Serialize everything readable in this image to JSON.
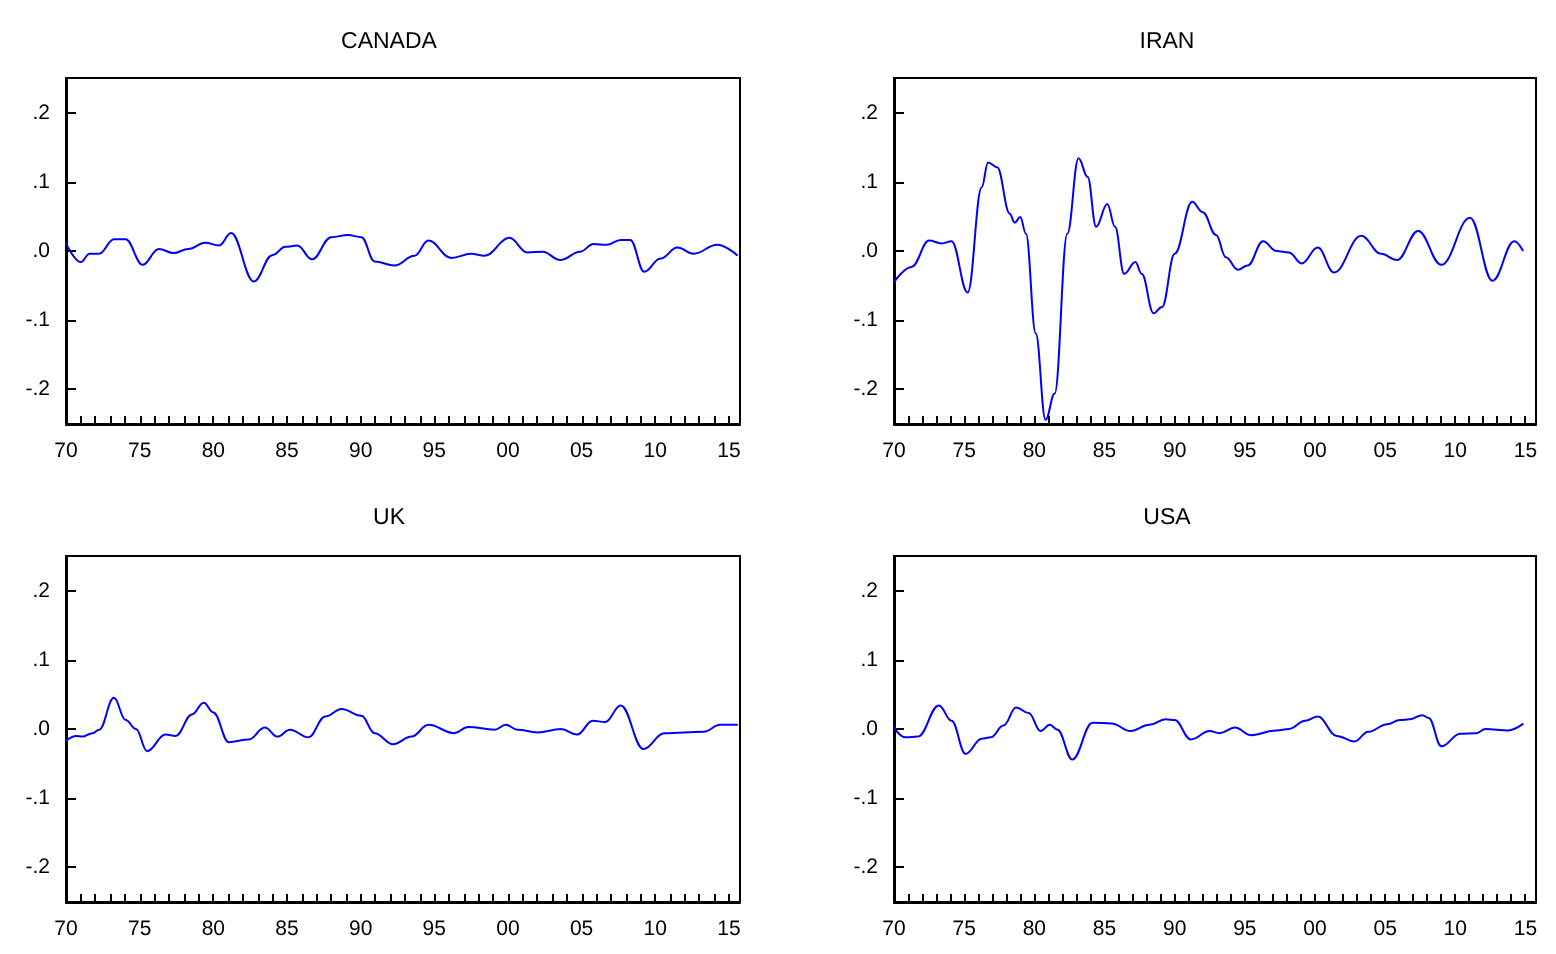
{
  "chart_data": [
    {
      "type": "line",
      "title": "CANADA",
      "x": [
        1970,
        1971.0,
        1971.6,
        1972.25,
        1973.25,
        1974.05,
        1975.2,
        1976.3,
        1977.3,
        1978.3,
        1979.45,
        1980.4,
        1981.2,
        1982.75,
        1984,
        1984.9,
        1985.7,
        1986.7,
        1988,
        1989.15,
        1990.05,
        1990.95,
        1992.3,
        1993.65,
        1994.6,
        1996.15,
        1997.5,
        1998.4,
        2000.1,
        2001.3,
        2002.35,
        2003.55,
        2004.9,
        2005.8,
        2006.7,
        2007.65,
        2008.3,
        2009.25,
        2010.35,
        2011.5,
        2012.6,
        2014.2,
        2015.55
      ],
      "series": [
        {
          "color": "#0000ff",
          "values": [
            0.011,
            -0.016,
            -0.004,
            -0.004,
            0.017,
            0.017,
            -0.02,
            0.003,
            -0.003,
            0.003,
            0.012,
            0.008,
            0.026,
            -0.044,
            -0.006,
            0.006,
            0.008,
            -0.012,
            0.02,
            0.023,
            0.02,
            -0.015,
            -0.021,
            -0.007,
            0.015,
            -0.01,
            -0.004,
            -0.007,
            0.019,
            -0.002,
            -0.001,
            -0.013,
            -0.001,
            0.01,
            0.009,
            0.016,
            0.016,
            -0.03,
            -0.011,
            0.005,
            -0.004,
            0.009,
            -0.006
          ]
        }
      ],
      "xlim": [
        1970,
        2015.75
      ],
      "xticks": [
        {
          "value": 1970,
          "label": "70"
        },
        {
          "value": 1971,
          "label": null
        },
        {
          "value": 1972,
          "label": null
        },
        {
          "value": 1973,
          "label": null
        },
        {
          "value": 1974,
          "label": null
        },
        {
          "value": 1975,
          "label": "75"
        },
        {
          "value": 1976,
          "label": null
        },
        {
          "value": 1977,
          "label": null
        },
        {
          "value": 1978,
          "label": null
        },
        {
          "value": 1979,
          "label": null
        },
        {
          "value": 1980,
          "label": "80"
        },
        {
          "value": 1981,
          "label": null
        },
        {
          "value": 1982,
          "label": null
        },
        {
          "value": 1983,
          "label": null
        },
        {
          "value": 1984,
          "label": null
        },
        {
          "value": 1985,
          "label": "85"
        },
        {
          "value": 1986,
          "label": null
        },
        {
          "value": 1987,
          "label": null
        },
        {
          "value": 1988,
          "label": null
        },
        {
          "value": 1989,
          "label": null
        },
        {
          "value": 1990,
          "label": "90"
        },
        {
          "value": 1991,
          "label": null
        },
        {
          "value": 1992,
          "label": null
        },
        {
          "value": 1993,
          "label": null
        },
        {
          "value": 1994,
          "label": null
        },
        {
          "value": 1995,
          "label": "95"
        },
        {
          "value": 1996,
          "label": null
        },
        {
          "value": 1997,
          "label": null
        },
        {
          "value": 1998,
          "label": null
        },
        {
          "value": 1999,
          "label": null
        },
        {
          "value": 2000,
          "label": "00"
        },
        {
          "value": 2001,
          "label": null
        },
        {
          "value": 2002,
          "label": null
        },
        {
          "value": 2003,
          "label": null
        },
        {
          "value": 2004,
          "label": null
        },
        {
          "value": 2005,
          "label": "05"
        },
        {
          "value": 2006,
          "label": null
        },
        {
          "value": 2007,
          "label": null
        },
        {
          "value": 2008,
          "label": null
        },
        {
          "value": 2009,
          "label": null
        },
        {
          "value": 2010,
          "label": "10"
        },
        {
          "value": 2011,
          "label": null
        },
        {
          "value": 2012,
          "label": null
        },
        {
          "value": 2013,
          "label": null
        },
        {
          "value": 2014,
          "label": null
        },
        {
          "value": 2015,
          "label": "15"
        }
      ],
      "ylim": [
        -0.25,
        0.25
      ],
      "yticks": [
        {
          "value": -0.2,
          "label": "-.2"
        },
        {
          "value": -0.1,
          "label": "-.1"
        },
        {
          "value": 0,
          "label": ".0"
        },
        {
          "value": 0.1,
          "label": ".1"
        },
        {
          "value": 0.2,
          "label": ".2"
        }
      ],
      "grid": false
    },
    {
      "type": "line",
      "title": "IRAN",
      "x": [
        1970,
        1971.25,
        1972.5,
        1973.4,
        1974.1,
        1975.25,
        1976.25,
        1976.7,
        1977.35,
        1978.25,
        1978.6,
        1979.0,
        1979.4,
        1980.1,
        1980.8,
        1981.45,
        1982.35,
        1983.15,
        1983.8,
        1984.4,
        1985.2,
        1985.75,
        1986.4,
        1987.2,
        1987.65,
        1988.5,
        1989.1,
        1990.0,
        1991.25,
        1992.0,
        1992.95,
        1993.65,
        1994.5,
        1995.2,
        1996.3,
        1997.25,
        1998.15,
        1999.05,
        2000.2,
        2001.35,
        2003.3,
        2004.7,
        2005.85,
        2007.35,
        2009.0,
        2011.05,
        2012.65,
        2014.2,
        2014.8
      ],
      "series": [
        {
          "color": "#0000ff",
          "values": [
            -0.045,
            -0.023,
            0.015,
            0.011,
            0.014,
            -0.06,
            0.092,
            0.128,
            0.121,
            0.054,
            0.041,
            0.049,
            0.025,
            -0.119,
            -0.244,
            -0.206,
            0.025,
            0.134,
            0.107,
            0.035,
            0.068,
            0.035,
            -0.033,
            -0.016,
            -0.033,
            -0.09,
            -0.081,
            -0.004,
            0.071,
            0.056,
            0.023,
            -0.009,
            -0.027,
            -0.021,
            0.014,
            0,
            -0.002,
            -0.018,
            0.005,
            -0.031,
            0.022,
            -0.004,
            -0.013,
            0.029,
            -0.02,
            0.048,
            -0.043,
            0.014,
            0.001
          ]
        }
      ],
      "xlim": [
        1970,
        2015.75
      ],
      "xticks": [
        {
          "value": 1970,
          "label": "70"
        },
        {
          "value": 1971,
          "label": null
        },
        {
          "value": 1972,
          "label": null
        },
        {
          "value": 1973,
          "label": null
        },
        {
          "value": 1974,
          "label": null
        },
        {
          "value": 1975,
          "label": "75"
        },
        {
          "value": 1976,
          "label": null
        },
        {
          "value": 1977,
          "label": null
        },
        {
          "value": 1978,
          "label": null
        },
        {
          "value": 1979,
          "label": null
        },
        {
          "value": 1980,
          "label": "80"
        },
        {
          "value": 1981,
          "label": null
        },
        {
          "value": 1982,
          "label": null
        },
        {
          "value": 1983,
          "label": null
        },
        {
          "value": 1984,
          "label": null
        },
        {
          "value": 1985,
          "label": "85"
        },
        {
          "value": 1986,
          "label": null
        },
        {
          "value": 1987,
          "label": null
        },
        {
          "value": 1988,
          "label": null
        },
        {
          "value": 1989,
          "label": null
        },
        {
          "value": 1990,
          "label": "90"
        },
        {
          "value": 1991,
          "label": null
        },
        {
          "value": 1992,
          "label": null
        },
        {
          "value": 1993,
          "label": null
        },
        {
          "value": 1994,
          "label": null
        },
        {
          "value": 1995,
          "label": "95"
        },
        {
          "value": 1996,
          "label": null
        },
        {
          "value": 1997,
          "label": null
        },
        {
          "value": 1998,
          "label": null
        },
        {
          "value": 1999,
          "label": null
        },
        {
          "value": 2000,
          "label": "00"
        },
        {
          "value": 2001,
          "label": null
        },
        {
          "value": 2002,
          "label": null
        },
        {
          "value": 2003,
          "label": null
        },
        {
          "value": 2004,
          "label": null
        },
        {
          "value": 2005,
          "label": "05"
        },
        {
          "value": 2006,
          "label": null
        },
        {
          "value": 2007,
          "label": null
        },
        {
          "value": 2008,
          "label": null
        },
        {
          "value": 2009,
          "label": null
        },
        {
          "value": 2010,
          "label": "10"
        },
        {
          "value": 2011,
          "label": null
        },
        {
          "value": 2012,
          "label": null
        },
        {
          "value": 2013,
          "label": null
        },
        {
          "value": 2014,
          "label": null
        },
        {
          "value": 2015,
          "label": "15"
        }
      ],
      "ylim": [
        -0.25,
        0.25
      ],
      "yticks": [
        {
          "value": -0.2,
          "label": "-.2"
        },
        {
          "value": -0.1,
          "label": "-.1"
        },
        {
          "value": 0,
          "label": ".0"
        },
        {
          "value": 0.1,
          "label": ".1"
        },
        {
          "value": 0.2,
          "label": ".2"
        }
      ],
      "grid": false
    },
    {
      "type": "line",
      "title": "UK",
      "x": [
        1970,
        1970.7,
        1971.1,
        1971.8,
        1972.25,
        1973.25,
        1974.05,
        1974.75,
        1975.5,
        1976.75,
        1977.45,
        1978.55,
        1979.35,
        1980,
        1981.05,
        1982.4,
        1983.5,
        1984.35,
        1985.2,
        1986.45,
        1987.6,
        1988.7,
        1990.05,
        1990.95,
        1992.2,
        1993.45,
        1994.6,
        1996.35,
        1997.3,
        1999.1,
        1999.85,
        2000.65,
        2002,
        2003.6,
        2004.7,
        2005.75,
        2006.6,
        2007.65,
        2009.2,
        2010.6,
        2013.3,
        2014.4,
        2015.55
      ],
      "series": [
        {
          "color": "#0000ff",
          "values": [
            -0.017,
            -0.01,
            -0.011,
            -0.006,
            -0.001,
            0.045,
            0.013,
            0,
            -0.032,
            -0.008,
            -0.01,
            0.021,
            0.038,
            0.024,
            -0.019,
            -0.015,
            0.002,
            -0.011,
            -0.001,
            -0.012,
            0.018,
            0.029,
            0.019,
            -0.006,
            -0.022,
            -0.011,
            0.006,
            -0.006,
            0.003,
            -0.001,
            0.006,
            -0.001,
            -0.005,
            0,
            -0.008,
            0.012,
            0.01,
            0.034,
            -0.029,
            -0.006,
            -0.004,
            0.006,
            0.006
          ]
        }
      ],
      "xlim": [
        1970,
        2015.75
      ],
      "xticks": [
        {
          "value": 1970,
          "label": "70"
        },
        {
          "value": 1971,
          "label": null
        },
        {
          "value": 1972,
          "label": null
        },
        {
          "value": 1973,
          "label": null
        },
        {
          "value": 1974,
          "label": null
        },
        {
          "value": 1975,
          "label": "75"
        },
        {
          "value": 1976,
          "label": null
        },
        {
          "value": 1977,
          "label": null
        },
        {
          "value": 1978,
          "label": null
        },
        {
          "value": 1979,
          "label": null
        },
        {
          "value": 1980,
          "label": "80"
        },
        {
          "value": 1981,
          "label": null
        },
        {
          "value": 1982,
          "label": null
        },
        {
          "value": 1983,
          "label": null
        },
        {
          "value": 1984,
          "label": null
        },
        {
          "value": 1985,
          "label": "85"
        },
        {
          "value": 1986,
          "label": null
        },
        {
          "value": 1987,
          "label": null
        },
        {
          "value": 1988,
          "label": null
        },
        {
          "value": 1989,
          "label": null
        },
        {
          "value": 1990,
          "label": "90"
        },
        {
          "value": 1991,
          "label": null
        },
        {
          "value": 1992,
          "label": null
        },
        {
          "value": 1993,
          "label": null
        },
        {
          "value": 1994,
          "label": null
        },
        {
          "value": 1995,
          "label": "95"
        },
        {
          "value": 1996,
          "label": null
        },
        {
          "value": 1997,
          "label": null
        },
        {
          "value": 1998,
          "label": null
        },
        {
          "value": 1999,
          "label": null
        },
        {
          "value": 2000,
          "label": "00"
        },
        {
          "value": 2001,
          "label": null
        },
        {
          "value": 2002,
          "label": null
        },
        {
          "value": 2003,
          "label": null
        },
        {
          "value": 2004,
          "label": null
        },
        {
          "value": 2005,
          "label": "05"
        },
        {
          "value": 2006,
          "label": null
        },
        {
          "value": 2007,
          "label": null
        },
        {
          "value": 2008,
          "label": null
        },
        {
          "value": 2009,
          "label": null
        },
        {
          "value": 2010,
          "label": "10"
        },
        {
          "value": 2011,
          "label": null
        },
        {
          "value": 2012,
          "label": null
        },
        {
          "value": 2013,
          "label": null
        },
        {
          "value": 2014,
          "label": null
        },
        {
          "value": 2015,
          "label": "15"
        }
      ],
      "ylim": [
        -0.25,
        0.25
      ],
      "yticks": [
        {
          "value": -0.2,
          "label": "-.2"
        },
        {
          "value": -0.1,
          "label": "-.1"
        },
        {
          "value": 0,
          "label": ".0"
        },
        {
          "value": 0.1,
          "label": ".1"
        },
        {
          "value": 0.2,
          "label": ".2"
        }
      ],
      "grid": false
    },
    {
      "type": "line",
      "title": "USA",
      "x": [
        1970,
        1970.8,
        1971.7,
        1973.2,
        1974.1,
        1975.1,
        1976.25,
        1976.9,
        1977.8,
        1978.7,
        1979.6,
        1980.45,
        1981.1,
        1981.65,
        1982.7,
        1984.15,
        1985.5,
        1986.85,
        1988.2,
        1989.35,
        1990,
        1991.15,
        1992.5,
        1993.2,
        1994.3,
        1995.45,
        1997.25,
        1998.15,
        1999.3,
        2000.2,
        2001.55,
        2002.8,
        2003.8,
        2005.15,
        2006.05,
        2006.75,
        2007.65,
        2008.1,
        2009,
        2010.35,
        2011.5,
        2012.15,
        2013.75,
        2014.8
      ],
      "series": [
        {
          "color": "#0000ff",
          "values": [
            0.002,
            -0.012,
            -0.011,
            0.034,
            0.012,
            -0.036,
            -0.014,
            -0.012,
            0.005,
            0.031,
            0.023,
            -0.003,
            0.006,
            -0.001,
            -0.044,
            0.009,
            0.008,
            -0.003,
            0.006,
            0.014,
            0.013,
            -0.015,
            -0.003,
            -0.006,
            0.002,
            -0.009,
            -0.002,
            0,
            0.012,
            0.018,
            -0.01,
            -0.018,
            -0.004,
            0.007,
            0.013,
            0.014,
            0.02,
            0.016,
            -0.025,
            -0.007,
            -0.006,
            0,
            -0.002,
            0.007
          ]
        }
      ],
      "xlim": [
        1970,
        2015.75
      ],
      "xticks": [
        {
          "value": 1970,
          "label": "70"
        },
        {
          "value": 1971,
          "label": null
        },
        {
          "value": 1972,
          "label": null
        },
        {
          "value": 1973,
          "label": null
        },
        {
          "value": 1974,
          "label": null
        },
        {
          "value": 1975,
          "label": "75"
        },
        {
          "value": 1976,
          "label": null
        },
        {
          "value": 1977,
          "label": null
        },
        {
          "value": 1978,
          "label": null
        },
        {
          "value": 1979,
          "label": null
        },
        {
          "value": 1980,
          "label": "80"
        },
        {
          "value": 1981,
          "label": null
        },
        {
          "value": 1982,
          "label": null
        },
        {
          "value": 1983,
          "label": null
        },
        {
          "value": 1984,
          "label": null
        },
        {
          "value": 1985,
          "label": "85"
        },
        {
          "value": 1986,
          "label": null
        },
        {
          "value": 1987,
          "label": null
        },
        {
          "value": 1988,
          "label": null
        },
        {
          "value": 1989,
          "label": null
        },
        {
          "value": 1990,
          "label": "90"
        },
        {
          "value": 1991,
          "label": null
        },
        {
          "value": 1992,
          "label": null
        },
        {
          "value": 1993,
          "label": null
        },
        {
          "value": 1994,
          "label": null
        },
        {
          "value": 1995,
          "label": "95"
        },
        {
          "value": 1996,
          "label": null
        },
        {
          "value": 1997,
          "label": null
        },
        {
          "value": 1998,
          "label": null
        },
        {
          "value": 1999,
          "label": null
        },
        {
          "value": 2000,
          "label": "00"
        },
        {
          "value": 2001,
          "label": null
        },
        {
          "value": 2002,
          "label": null
        },
        {
          "value": 2003,
          "label": null
        },
        {
          "value": 2004,
          "label": null
        },
        {
          "value": 2005,
          "label": "05"
        },
        {
          "value": 2006,
          "label": null
        },
        {
          "value": 2007,
          "label": null
        },
        {
          "value": 2008,
          "label": null
        },
        {
          "value": 2009,
          "label": null
        },
        {
          "value": 2010,
          "label": "10"
        },
        {
          "value": 2011,
          "label": null
        },
        {
          "value": 2012,
          "label": null
        },
        {
          "value": 2013,
          "label": null
        },
        {
          "value": 2014,
          "label": null
        },
        {
          "value": 2015,
          "label": "15"
        }
      ],
      "ylim": [
        -0.25,
        0.25
      ],
      "yticks": [
        {
          "value": -0.2,
          "label": "-.2"
        },
        {
          "value": -0.1,
          "label": "-.1"
        },
        {
          "value": 0,
          "label": ".0"
        },
        {
          "value": 0.1,
          "label": ".1"
        },
        {
          "value": 0.2,
          "label": ".2"
        }
      ],
      "grid": false
    }
  ]
}
